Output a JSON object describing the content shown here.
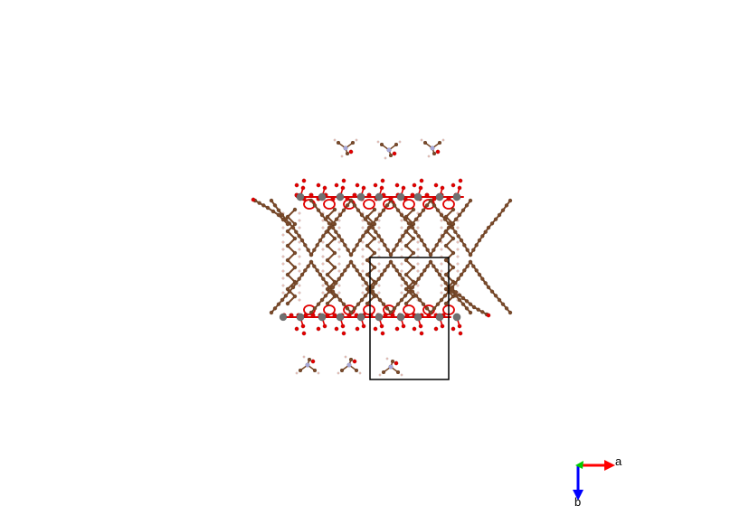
{
  "axes": {
    "a_label": "a",
    "b_label": "b"
  },
  "colors": {
    "background": "#ffffff",
    "carbon": "#7a4a2a",
    "oxygen": "#e00000",
    "hydrogen": "#f2c8c0",
    "nitrogen": "#a8a8d8",
    "metal": "#707070",
    "cell_edge": "#000000",
    "axis_a": "#ff0000",
    "axis_b": "#0000ff",
    "axis_c": "#00cc00"
  },
  "icons": {
    "axis_indicator": "axis-triad-icon",
    "unit_cell": "unit-cell-box"
  }
}
